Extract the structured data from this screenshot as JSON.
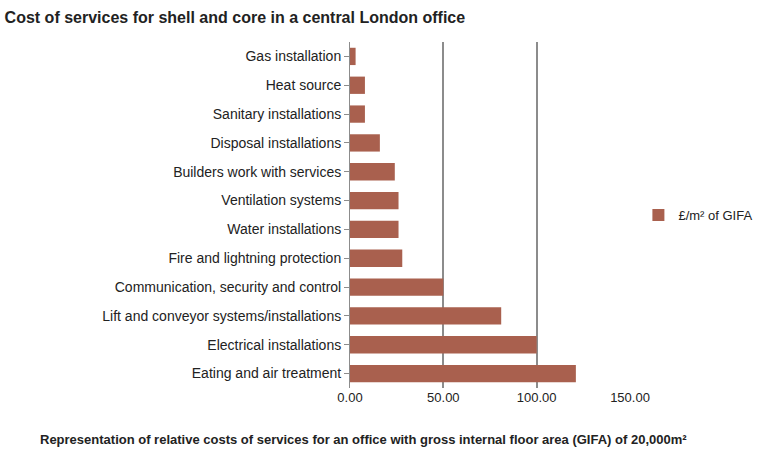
{
  "chart_data": {
    "type": "bar",
    "orientation": "horizontal",
    "title": "Cost of services for shell and core in a central London office",
    "annotations": [
      "Representation of relative costs of services for an office with gross internal floor area (GIFA) of 20,000m²"
    ],
    "categories": [
      "Gas installation",
      "Heat source",
      "Sanitary installations",
      "Disposal installations",
      "Builders work with services",
      "Ventilation systems",
      "Water installations",
      "Fire and lightning protection",
      "Communication, security and control",
      "Lift and conveyor systems/installations",
      "Electrical installations",
      "Eating and air treatment"
    ],
    "series": [
      {
        "name": "£/m² of GIFA",
        "color": "#a9604e",
        "values": [
          3,
          8,
          8,
          16,
          24,
          26,
          26,
          28,
          50,
          81,
          100,
          121
        ]
      }
    ],
    "xlim": [
      0,
      150
    ],
    "xticks": [
      {
        "value": 0,
        "label": "0.00"
      },
      {
        "value": 50,
        "label": "50.00"
      },
      {
        "value": 100,
        "label": "100.00"
      },
      {
        "value": 150,
        "label": "150.00"
      }
    ],
    "grid": true,
    "legend": "right"
  }
}
